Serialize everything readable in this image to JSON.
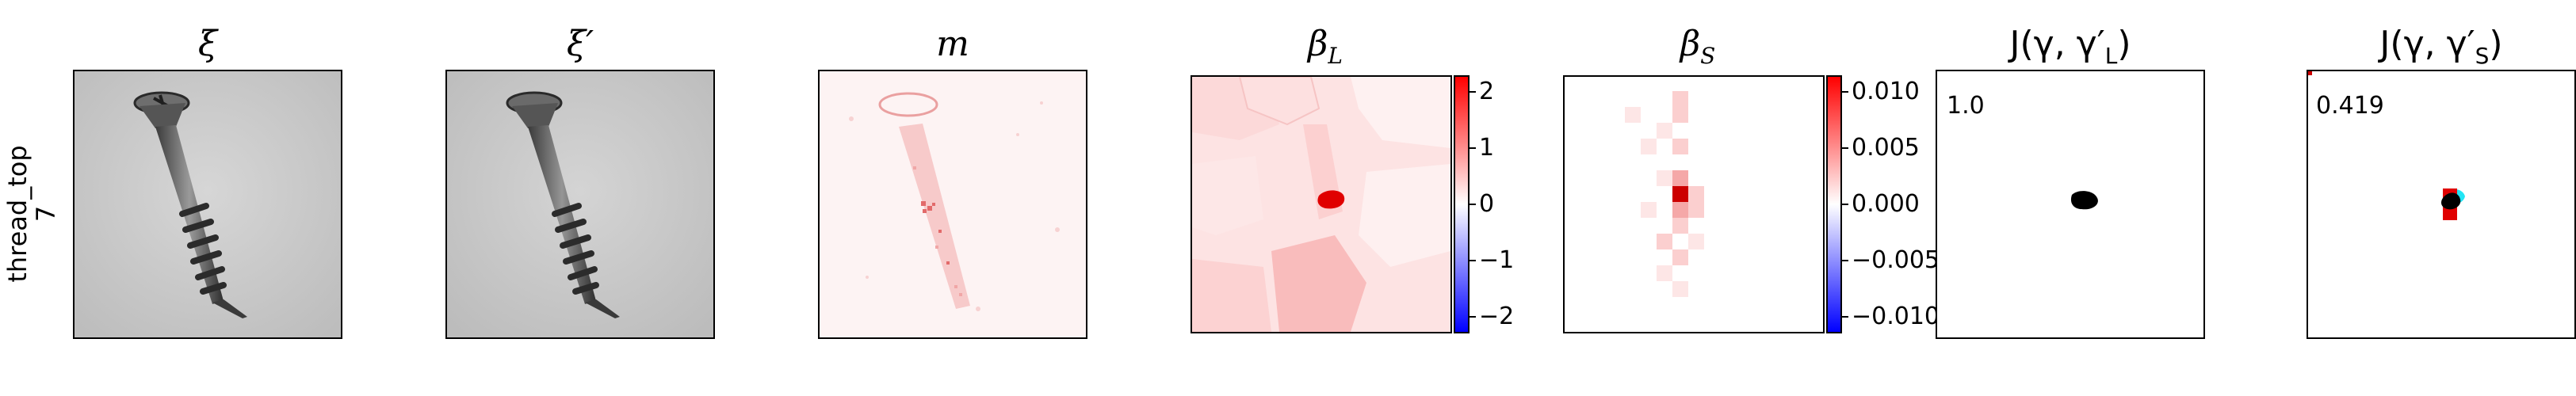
{
  "row_label": {
    "line1": "thread_top",
    "line2": "7"
  },
  "panels": {
    "xi": {
      "title": "ξ"
    },
    "xi_prime": {
      "title": "ξ′"
    },
    "m": {
      "title": "m"
    },
    "beta_L": {
      "title": "β",
      "sub": "L"
    },
    "beta_S": {
      "title": "β",
      "sub": "S"
    },
    "J_L": {
      "title": "J(γ, γ′",
      "sub": "L",
      "close": ")",
      "score": "1.0"
    },
    "J_S": {
      "title": "J(γ, γ′",
      "sub": "S",
      "close": ")",
      "score": "0.419"
    }
  },
  "colorbar_L": {
    "ticks": [
      "2",
      "1",
      "0",
      "−1",
      "−2"
    ],
    "range": [
      -2.3,
      2.3
    ],
    "values": [
      2,
      1,
      0,
      -1,
      -2
    ]
  },
  "colorbar_S": {
    "ticks": [
      "0.010",
      "0.005",
      "0.000",
      "−0.005",
      "−0.010"
    ],
    "range": [
      -0.0115,
      0.0115
    ],
    "values": [
      0.01,
      0.005,
      0,
      -0.005,
      -0.01
    ]
  },
  "colors": {
    "red": "#ff0000",
    "blue": "#0000ff",
    "cyan": "#22e5f5",
    "black": "#000000"
  }
}
